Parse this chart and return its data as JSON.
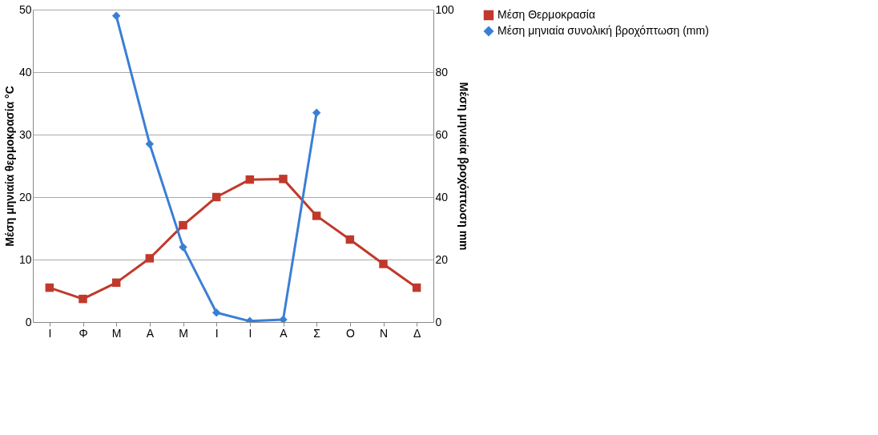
{
  "chart_data": {
    "type": "line",
    "categories": [
      "Ι",
      "Φ",
      "Μ",
      "Α",
      "Μ",
      "Ι",
      "Ι",
      "Α",
      "Σ",
      "Ο",
      "Ν",
      "Δ"
    ],
    "series": [
      {
        "name": "Μέση Θερμοκρασία",
        "color": "#c0392b",
        "marker": "square",
        "values": [
          5.5,
          3.7,
          6.3,
          10.2,
          15.5,
          20,
          22.8,
          22.9,
          17,
          13.2,
          9.3,
          5.5
        ]
      },
      {
        "name": "Μέση μηνιαία συνολική βροχόπτωση (mm)",
        "color": "#3a7fd5",
        "marker": "diamond",
        "axis": "y2",
        "values": [
          null,
          null,
          98,
          57,
          24,
          3,
          0.3,
          0.8,
          67,
          null,
          null,
          null
        ]
      }
    ],
    "ylabel": "Μέση μηνιαία θερμοκρασία °C",
    "y2label": "Μέση μηνιαία βροχόπτωση mm",
    "ylim": [
      0,
      50
    ],
    "yticks": [
      0,
      10,
      20,
      30,
      40,
      50
    ],
    "y2lim": [
      0,
      100
    ],
    "y2ticks": [
      0,
      20,
      40,
      60,
      80,
      100
    ],
    "grid": "y",
    "legend": "right",
    "line_style": "solid"
  }
}
